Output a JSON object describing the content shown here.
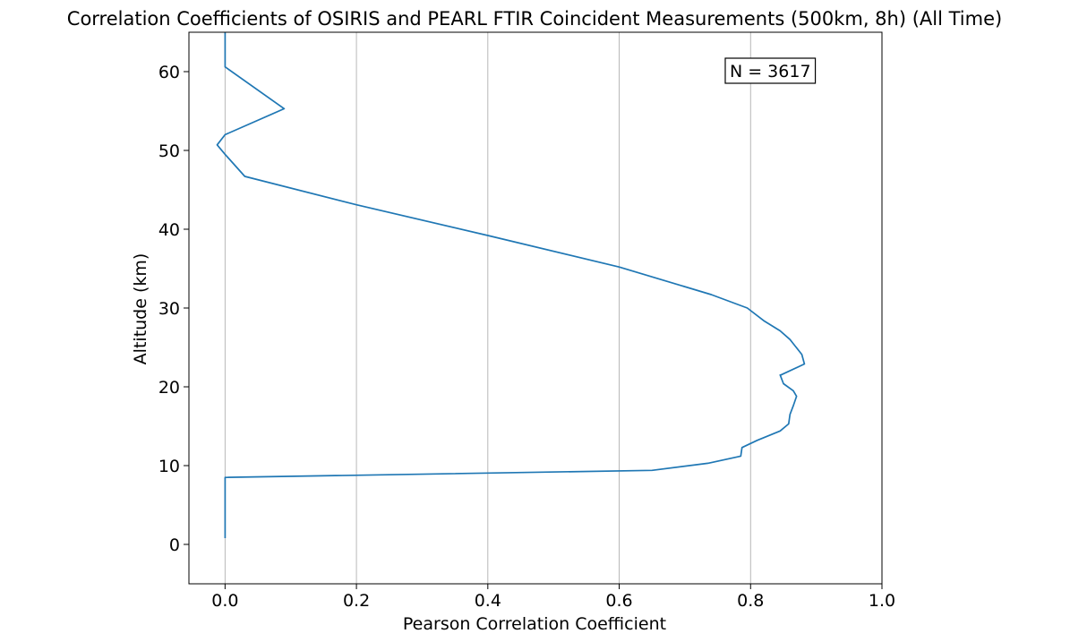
{
  "chart_data": {
    "type": "line",
    "title": "Correlation Coefficients of OSIRIS and PEARL FTIR Coincident Measurements (500km, 8h) (All Time)",
    "xlabel": "Pearson Correlation Coefficient",
    "ylabel": "Altitude (km)",
    "xlim": [
      -0.055,
      1.0
    ],
    "ylim": [
      -5,
      65
    ],
    "xticks": [
      0.0,
      0.2,
      0.4,
      0.6,
      0.8,
      1.0
    ],
    "xtick_labels": [
      "0.0",
      "0.2",
      "0.4",
      "0.6",
      "0.8",
      "1.0"
    ],
    "yticks": [
      0,
      10,
      20,
      30,
      40,
      50,
      60
    ],
    "ytick_labels": [
      "0",
      "10",
      "20",
      "30",
      "40",
      "50",
      "60"
    ],
    "grid": "vertical x-gridlines",
    "line_color": "#1f77b4",
    "annotation": "N = 3617",
    "annotation_position": "top-right",
    "series": [
      {
        "x": [
          0.0,
          0.0,
          0.0,
          0.65,
          0.735,
          0.785,
          0.787,
          0.81,
          0.845,
          0.858,
          0.86,
          0.865,
          0.87,
          0.865,
          0.85,
          0.845,
          0.846,
          0.882,
          0.878,
          0.86,
          0.845,
          0.82,
          0.795,
          0.74,
          0.6,
          0.4,
          0.2,
          0.03,
          0.0,
          -0.012,
          0.0,
          0.09,
          0.0,
          0.0,
          0.0
        ],
        "y": [
          0.8,
          5.0,
          8.5,
          9.4,
          10.3,
          11.2,
          12.3,
          13.2,
          14.4,
          15.3,
          16.5,
          17.6,
          18.8,
          19.5,
          20.4,
          21.5,
          21.5,
          22.9,
          24.1,
          26.0,
          27.1,
          28.4,
          30.0,
          31.7,
          35.2,
          39.2,
          43.1,
          46.7,
          49.5,
          50.7,
          52.0,
          55.3,
          60.6,
          63.0,
          65.0
        ]
      }
    ]
  }
}
